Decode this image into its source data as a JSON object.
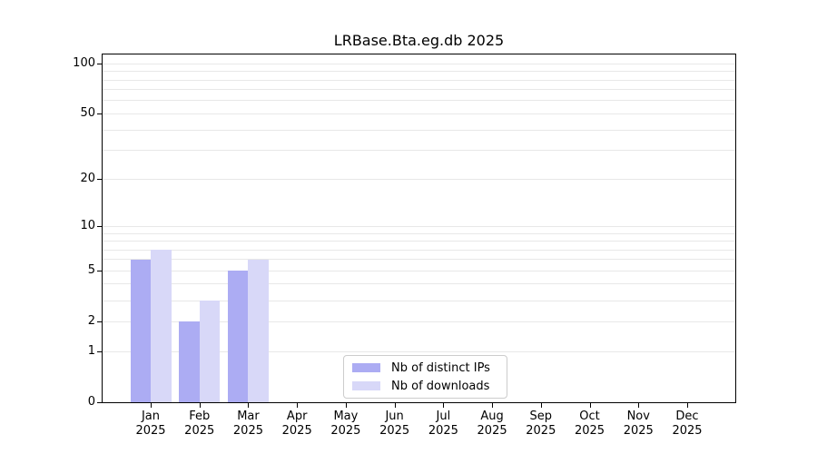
{
  "chart_data": {
    "type": "bar",
    "title": "LRBase.Bta.eg.db 2025",
    "background": "#ffffff",
    "yscale": "log1p",
    "ylim": [
      0,
      113.6
    ],
    "yticks": [
      0,
      1,
      2,
      5,
      10,
      20,
      50,
      100
    ],
    "gridline_values": [
      1,
      2,
      3,
      4,
      5,
      6,
      7,
      8,
      9,
      10,
      20,
      30,
      40,
      50,
      60,
      70,
      80,
      90,
      100
    ],
    "grid_color": "#e8e8e8",
    "axis_color": "#000000",
    "text_color": "#000000",
    "categories": [
      {
        "month": "Jan",
        "year": "2025"
      },
      {
        "month": "Feb",
        "year": "2025"
      },
      {
        "month": "Mar",
        "year": "2025"
      },
      {
        "month": "Apr",
        "year": "2025"
      },
      {
        "month": "May",
        "year": "2025"
      },
      {
        "month": "Jun",
        "year": "2025"
      },
      {
        "month": "Jul",
        "year": "2025"
      },
      {
        "month": "Aug",
        "year": "2025"
      },
      {
        "month": "Sep",
        "year": "2025"
      },
      {
        "month": "Oct",
        "year": "2025"
      },
      {
        "month": "Nov",
        "year": "2025"
      },
      {
        "month": "Dec",
        "year": "2025"
      }
    ],
    "series": [
      {
        "name": "Nb of distinct IPs",
        "color": "#acacf3",
        "values": [
          6,
          2,
          5,
          0,
          0,
          0,
          0,
          0,
          0,
          0,
          0,
          0
        ]
      },
      {
        "name": "Nb of downloads",
        "color": "#d8d8f8",
        "values": [
          7,
          3,
          6,
          0,
          0,
          0,
          0,
          0,
          0,
          0,
          0,
          0
        ]
      }
    ],
    "legend": {
      "position": "lower center inside plot"
    }
  }
}
